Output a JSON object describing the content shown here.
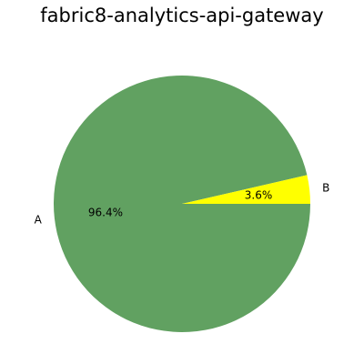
{
  "chart_data": {
    "type": "pie",
    "title": "fabric8-analytics-api-gateway",
    "slices": [
      {
        "label": "A",
        "value": 96.4,
        "pct_label": "96.4%",
        "color": "#61a161"
      },
      {
        "label": "B",
        "value": 3.6,
        "pct_label": "3.6%",
        "color": "#ffff00"
      }
    ],
    "start_angle": 0,
    "direction": "clockwise"
  }
}
